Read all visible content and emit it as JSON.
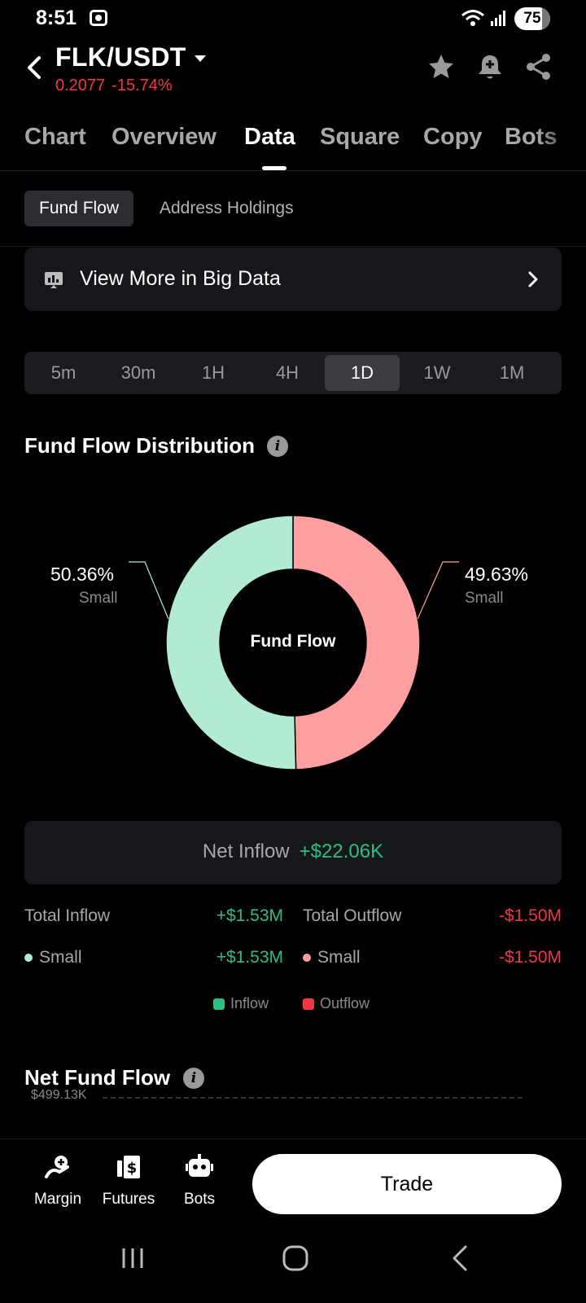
{
  "status": {
    "time": "8:51",
    "battery": "75"
  },
  "header": {
    "pair": "FLK/USDT",
    "price": "0.2077",
    "change": "-15.74%"
  },
  "tabs": [
    {
      "label": "Chart"
    },
    {
      "label": "Overview"
    },
    {
      "label": "Data",
      "active": true
    },
    {
      "label": "Square"
    },
    {
      "label": "Copy"
    },
    {
      "label": "Bots"
    }
  ],
  "subtabs": [
    {
      "label": "Fund Flow",
      "active": true
    },
    {
      "label": "Address Holdings"
    }
  ],
  "big_data": {
    "label": "View More in Big Data"
  },
  "timeframes": {
    "options": [
      "5m",
      "30m",
      "1H",
      "4H",
      "1D",
      "1W",
      "1M"
    ],
    "selected": "1D"
  },
  "distribution": {
    "title": "Fund Flow Distribution",
    "center_label": "Fund Flow",
    "inflow_pct": "50.36%",
    "inflow_sub": "Small",
    "outflow_pct": "49.63%",
    "outflow_sub": "Small"
  },
  "chart_data": {
    "type": "pie",
    "categories": [
      "Inflow – Small",
      "Outflow – Small"
    ],
    "values": [
      50.36,
      49.63
    ],
    "colors": [
      "#b2ebd2",
      "#ff9fa2"
    ],
    "title": "Fund Flow Distribution",
    "center_label": "Fund Flow"
  },
  "net_inflow": {
    "label": "Net Inflow",
    "value": "+$22.06K"
  },
  "totals": {
    "total_inflow_label": "Total Inflow",
    "total_inflow_value": "+$1.53M",
    "total_outflow_label": "Total Outflow",
    "total_outflow_value": "-$1.50M",
    "small_in_label": "Small",
    "small_in_value": "+$1.53M",
    "small_out_label": "Small",
    "small_out_value": "-$1.50M"
  },
  "legend": {
    "inflow": "Inflow",
    "outflow": "Outflow"
  },
  "net_fund_flow": {
    "title": "Net Fund Flow",
    "axis_top": "$499.13K"
  },
  "bottom": {
    "margin": "Margin",
    "futures": "Futures",
    "bots": "Bots",
    "trade": "Trade"
  },
  "colors": {
    "green": "#2ebd85",
    "red": "#f23645",
    "donut_green": "#b2ebd2",
    "donut_red": "#ff9fa2"
  }
}
